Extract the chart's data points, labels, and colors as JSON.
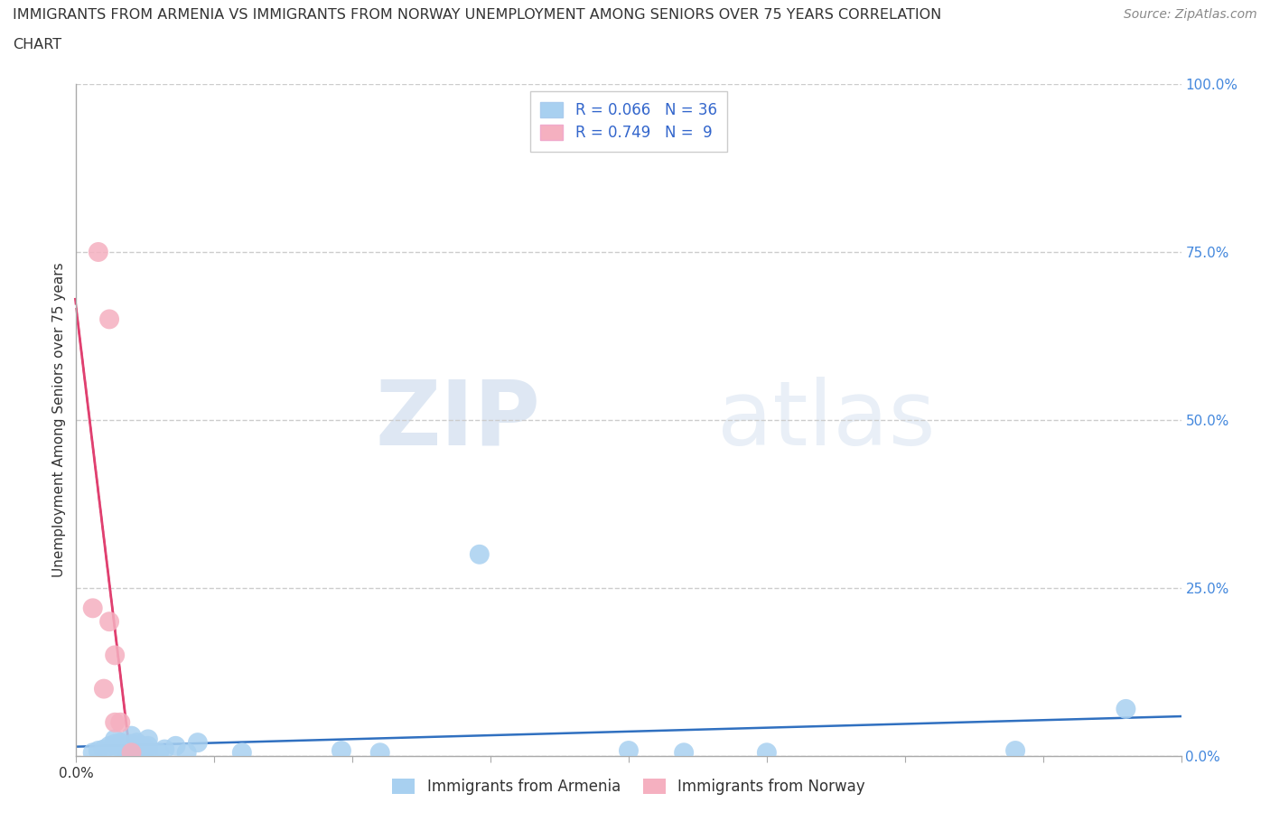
{
  "title_line1": "IMMIGRANTS FROM ARMENIA VS IMMIGRANTS FROM NORWAY UNEMPLOYMENT AMONG SENIORS OVER 75 YEARS CORRELATION",
  "title_line2": "CHART",
  "source": "Source: ZipAtlas.com",
  "ylabel": "Unemployment Among Seniors over 75 years",
  "xlim": [
    0.0,
    0.2
  ],
  "ylim": [
    0.0,
    1.0
  ],
  "xticks": [
    0.0,
    0.025,
    0.05,
    0.075,
    0.1,
    0.125,
    0.15,
    0.175,
    0.2
  ],
  "xticklabels_show": {
    "0.0": "0.0%"
  },
  "yticks": [
    0.0,
    0.25,
    0.5,
    0.75,
    1.0
  ],
  "yticklabels": [
    "0.0%",
    "25.0%",
    "50.0%",
    "75.0%",
    "100.0%"
  ],
  "armenia_R": 0.066,
  "armenia_N": 36,
  "norway_R": 0.749,
  "norway_N": 9,
  "armenia_color": "#a8d0f0",
  "norway_color": "#f5b0c0",
  "armenia_line_color": "#3070c0",
  "norway_line_color": "#e04070",
  "norway_line_dash_color": "#e04070",
  "armenia_scatter_x": [
    0.003,
    0.004,
    0.005,
    0.006,
    0.007,
    0.007,
    0.008,
    0.008,
    0.008,
    0.009,
    0.009,
    0.01,
    0.01,
    0.01,
    0.01,
    0.011,
    0.011,
    0.012,
    0.012,
    0.013,
    0.013,
    0.013,
    0.015,
    0.016,
    0.018,
    0.02,
    0.022,
    0.03,
    0.048,
    0.055,
    0.073,
    0.1,
    0.11,
    0.125,
    0.17,
    0.19
  ],
  "armenia_scatter_y": [
    0.005,
    0.008,
    0.01,
    0.015,
    0.018,
    0.025,
    0.005,
    0.012,
    0.02,
    0.008,
    0.015,
    0.005,
    0.01,
    0.018,
    0.03,
    0.008,
    0.02,
    0.005,
    0.015,
    0.008,
    0.015,
    0.025,
    0.005,
    0.01,
    0.015,
    0.005,
    0.02,
    0.005,
    0.008,
    0.005,
    0.3,
    0.008,
    0.005,
    0.005,
    0.008,
    0.07
  ],
  "norway_scatter_x": [
    0.003,
    0.004,
    0.005,
    0.006,
    0.006,
    0.007,
    0.007,
    0.008,
    0.01
  ],
  "norway_scatter_y": [
    0.22,
    0.75,
    0.1,
    0.65,
    0.2,
    0.05,
    0.15,
    0.05,
    0.005
  ],
  "watermark_zip": "ZIP",
  "watermark_atlas": "atlas",
  "legend_entries": [
    "Immigrants from Armenia",
    "Immigrants from Norway"
  ],
  "background_color": "#ffffff",
  "grid_color": "#cccccc",
  "tick_color": "#aaaaaa",
  "ylabel_color": "#333333",
  "ytick_label_color": "#4488dd",
  "title_color": "#333333",
  "source_color": "#888888"
}
